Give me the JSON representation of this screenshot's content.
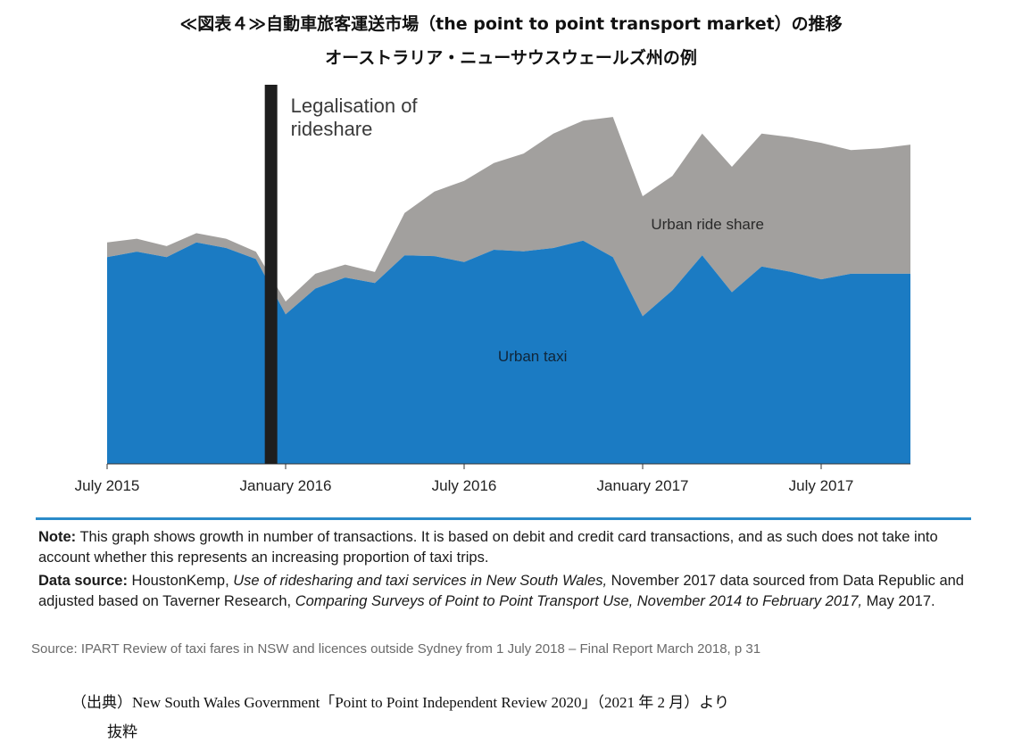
{
  "header": {
    "title": "≪図表４≫自動車旅客運送市場（the point to point transport market）の推移",
    "subtitle": "オーストラリア・ニューサウスウェールズ州の例"
  },
  "chart_data": {
    "type": "area",
    "stacked": true,
    "x_months": [
      "2015-07",
      "2015-08",
      "2015-09",
      "2015-10",
      "2015-11",
      "2015-12",
      "2016-01",
      "2016-02",
      "2016-03",
      "2016-04",
      "2016-05",
      "2016-06",
      "2016-07",
      "2016-08",
      "2016-09",
      "2016-10",
      "2016-11",
      "2016-12",
      "2017-01",
      "2017-02",
      "2017-03",
      "2017-04",
      "2017-05",
      "2017-06",
      "2017-07",
      "2017-08",
      "2017-09",
      "2017-10"
    ],
    "x_tick_labels": [
      "July 2015",
      "January 2016",
      "July 2016",
      "January 2017",
      "July 2017"
    ],
    "x_tick_months": [
      "2015-07",
      "2016-01",
      "2016-07",
      "2017-01",
      "2017-07"
    ],
    "series": [
      {
        "name": "Urban taxi",
        "color": "#1b7bc3",
        "values": [
          56,
          57.5,
          56,
          60,
          58.5,
          55.5,
          40.5,
          47.5,
          50.5,
          49,
          56.5,
          56.3,
          54.7,
          58,
          57.6,
          58.5,
          60.5,
          56,
          40,
          47,
          56.5,
          46.5,
          53.5,
          52,
          50,
          51.5,
          51.5,
          51.5
        ]
      },
      {
        "name": "Urban ride share",
        "color": "#a2a09e",
        "values": [
          4,
          3.5,
          3,
          2.5,
          2.5,
          2,
          3.5,
          4,
          3.5,
          3,
          11.5,
          17.5,
          22,
          23.5,
          26.5,
          31,
          32.5,
          38,
          32.5,
          31,
          33,
          34,
          36,
          36.5,
          37,
          33.5,
          34,
          35
        ]
      }
    ],
    "annotation": {
      "text_line1": "Legalisation of",
      "text_line2": "rideshare",
      "month": "2015-12"
    },
    "ylim": [
      0,
      102
    ],
    "grid": false,
    "legend": "inline labels"
  },
  "notes": {
    "note_label": "Note:",
    "note_text": " This graph shows growth in number of transactions.  It is based on debit and credit card transactions, and as such does not take into account whether this represents an increasing proportion of taxi trips.",
    "data_label": "Data source:",
    "data_text_1": " HoustonKemp, ",
    "data_italic_1": "Use of ridesharing and taxi services in New South Wales,",
    "data_text_2": " November 2017 data sourced from Data Republic and adjusted based on Taverner Research, ",
    "data_italic_2": "Comparing Surveys of Point to Point Transport Use, November 2014 to February 2017,",
    "data_text_3": " May 2017.",
    "source": "Source: IPART Review of taxi fares in NSW and licences outside Sydney from 1 July 2018 – Final Report March 2018, p 31"
  },
  "citation": {
    "line1": "（出典）New South Wales Government「Point to Point Independent Review 2020」（2021 年 2 月）より",
    "line2": "抜粋"
  }
}
